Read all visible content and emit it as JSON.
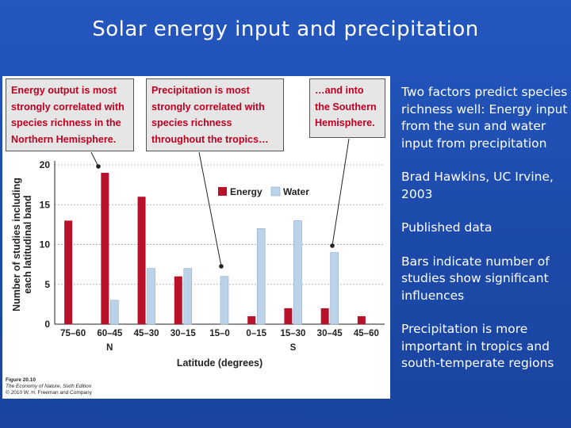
{
  "slide": {
    "title": "Solar energy input and precipitation",
    "bullets": [
      "Two factors predict species richness well: Energy input from the sun and water input from precipitation",
      "Brad Hawkins, UC Irvine, 2003",
      "Published data",
      "Bars indicate number of studies show significant influences",
      "Precipitation is more important in tropics and south-temperate regions"
    ]
  },
  "figure": {
    "callouts": [
      "Energy output is most strongly correlated with species richness in the Northern Hemisphere.",
      "Precipitation is most strongly correlated with species richness throughout the tropics…",
      "…and into the Southern Hemisphere."
    ],
    "credit": {
      "figure": "Figure 20.10",
      "book": "The Economy of Nature, Sixth Edition",
      "copyright": "© 2010 W. H. Freeman and Company"
    },
    "hemisphere_labels": {
      "north": "N",
      "south": "S"
    }
  },
  "chart_data": {
    "type": "bar",
    "xlabel": "Latitude (degrees)",
    "ylabel": "Number of studies including each latitudinal band",
    "ylim": [
      0,
      20
    ],
    "yticks": [
      0,
      5,
      10,
      15,
      20
    ],
    "grid": true,
    "legend_position": "top-right",
    "categories": [
      "75–60",
      "60–45",
      "45–30",
      "30–15",
      "15–0",
      "0–15",
      "15–30",
      "30–45",
      "45–60"
    ],
    "series": [
      {
        "name": "Energy",
        "color": "#b8122b",
        "values": [
          13,
          19,
          16,
          6,
          0,
          1,
          2,
          2,
          1
        ]
      },
      {
        "name": "Water",
        "color": "#bcd2e8",
        "values": [
          0,
          3,
          7,
          7,
          6,
          12,
          13,
          9,
          0
        ]
      }
    ]
  }
}
